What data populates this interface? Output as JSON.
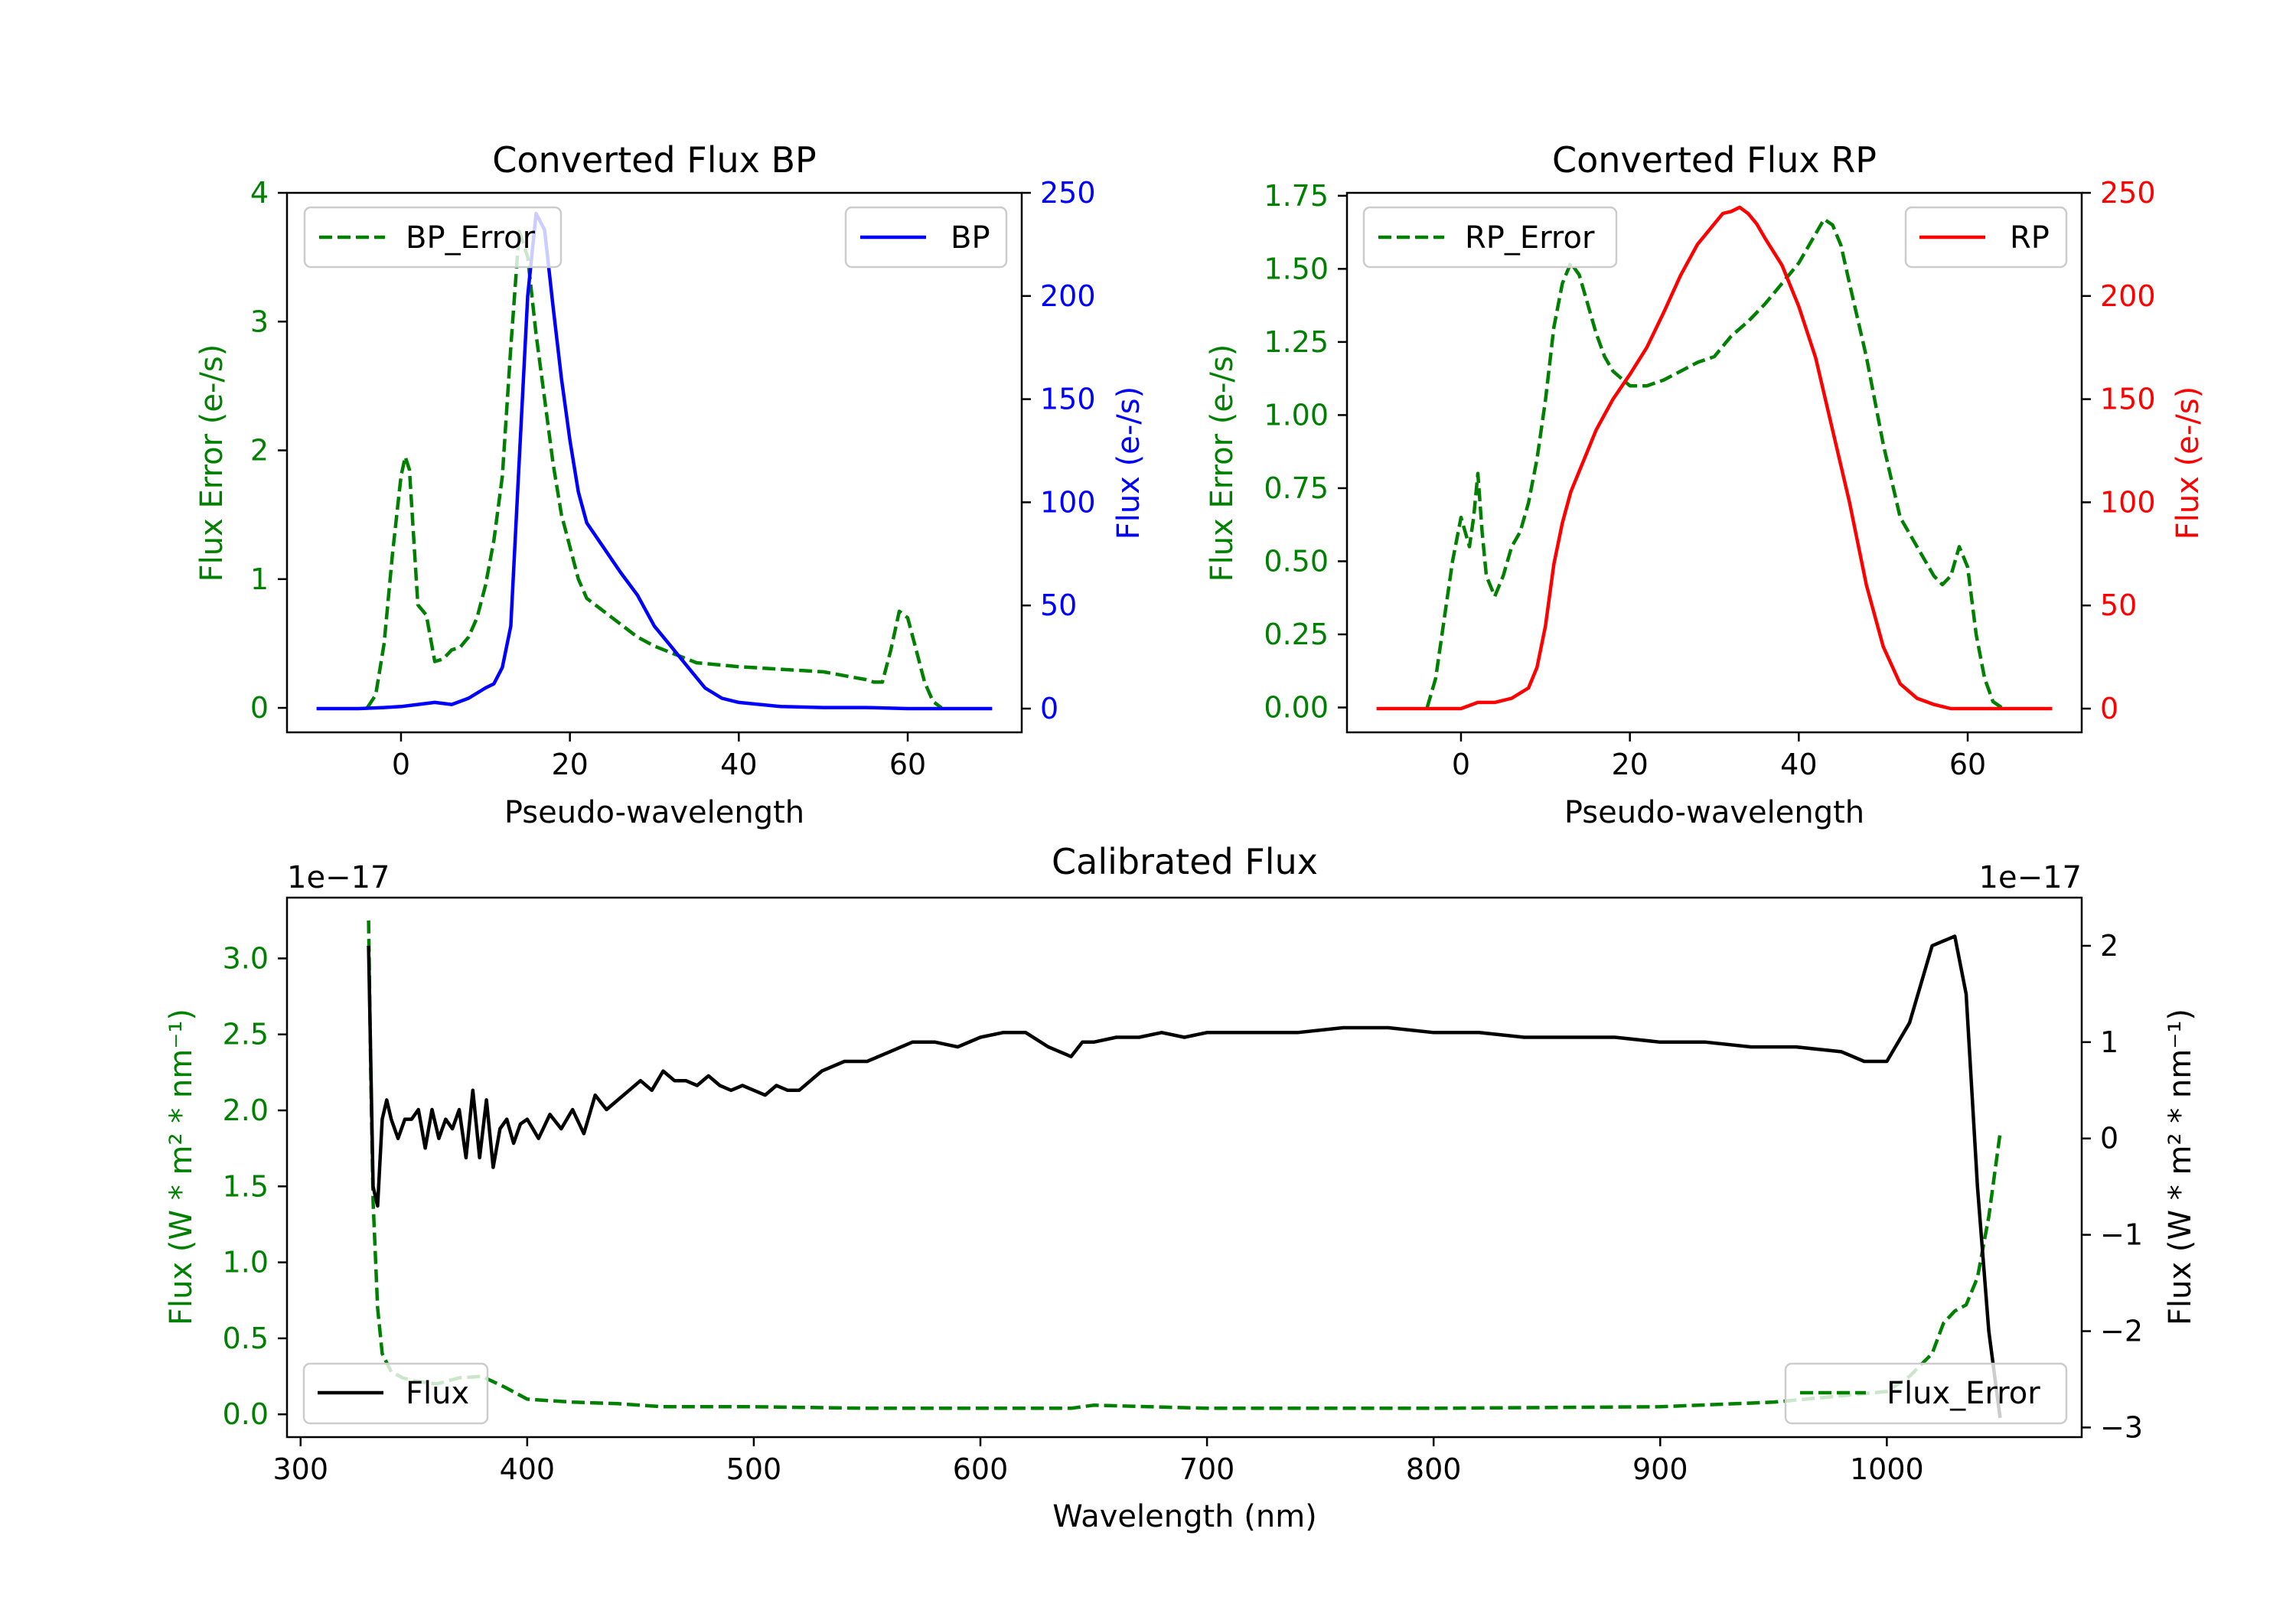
{
  "chart_data": [
    {
      "id": "bp",
      "type": "line",
      "title": "Converted Flux BP",
      "xlabel": "Pseudo-wavelength",
      "xlim": [
        -13.5,
        73.5
      ],
      "xticks": [
        0,
        20,
        40,
        60
      ],
      "colors": {
        "left": "#008000",
        "right": "#0000ff"
      },
      "left_axis": {
        "label": "Flux Error (e-/s)",
        "ylim": [
          -0.19,
          4.0
        ],
        "ticks": [
          0,
          1,
          2,
          3,
          4
        ]
      },
      "right_axis": {
        "label": "Flux (e-/s)",
        "ylim": [
          -11.5,
          250
        ],
        "ticks": [
          0,
          50,
          100,
          150,
          200,
          250
        ]
      },
      "series": [
        {
          "name": "BP_Error",
          "axis": "left",
          "color": "#008000",
          "dash": true,
          "x": [
            -4,
            -3,
            -2,
            -1,
            0,
            0.5,
            1,
            2,
            3,
            4,
            5,
            6,
            7,
            8,
            9,
            10,
            11,
            12,
            13,
            14,
            15,
            16,
            17,
            18,
            19,
            20,
            21,
            22,
            24,
            26,
            28,
            30,
            35,
            40,
            45,
            50,
            55,
            56,
            57,
            58,
            59,
            60,
            61,
            62,
            63,
            64
          ],
          "y": [
            0,
            0.1,
            0.5,
            1.2,
            1.8,
            1.95,
            1.85,
            0.8,
            0.72,
            0.36,
            0.38,
            0.45,
            0.47,
            0.55,
            0.7,
            0.95,
            1.3,
            1.8,
            2.8,
            3.7,
            3.5,
            2.9,
            2.4,
            1.9,
            1.5,
            1.25,
            1.0,
            0.85,
            0.75,
            0.65,
            0.55,
            0.48,
            0.35,
            0.32,
            0.3,
            0.28,
            0.22,
            0.2,
            0.2,
            0.45,
            0.75,
            0.7,
            0.45,
            0.2,
            0.05,
            0
          ]
        },
        {
          "name": "BP",
          "axis": "right",
          "color": "#0000ff",
          "dash": false,
          "x": [
            -10,
            -5,
            -2,
            0,
            2,
            4,
            6,
            8,
            10,
            11,
            12,
            13,
            14,
            15,
            16,
            17,
            18,
            19,
            20,
            21,
            22,
            24,
            26,
            28,
            30,
            32,
            34,
            36,
            38,
            40,
            45,
            50,
            55,
            60,
            65,
            70
          ],
          "y": [
            0,
            0,
            0.5,
            1,
            2,
            3,
            2,
            5,
            10,
            12,
            20,
            40,
            120,
            200,
            240,
            232,
            195,
            160,
            130,
            105,
            90,
            78,
            66,
            55,
            40,
            30,
            20,
            10,
            5,
            3,
            1,
            0.5,
            0.5,
            0,
            0,
            0
          ]
        }
      ],
      "legends": [
        {
          "label": "BP_Error",
          "placement": "upper-left"
        },
        {
          "label": "BP",
          "placement": "upper-right"
        }
      ]
    },
    {
      "id": "rp",
      "type": "line",
      "title": "Converted Flux RP",
      "xlabel": "Pseudo-wavelength",
      "xlim": [
        -13.5,
        73.5
      ],
      "xticks": [
        0,
        20,
        40,
        60
      ],
      "colors": {
        "left": "#008000",
        "right": "#ff0000"
      },
      "left_axis": {
        "label": "Flux Error (e-/s)",
        "ylim": [
          -0.085,
          1.76
        ],
        "ticks": [
          0.0,
          0.25,
          0.5,
          0.75,
          1.0,
          1.25,
          1.5,
          1.75
        ]
      },
      "right_axis": {
        "label": "Flux (e-/s)",
        "ylim": [
          -11.5,
          250
        ],
        "ticks": [
          0,
          50,
          100,
          150,
          200,
          250
        ]
      },
      "series": [
        {
          "name": "RP_Error",
          "axis": "left",
          "color": "#008000",
          "dash": true,
          "x": [
            -4,
            -3,
            -2,
            -1,
            0,
            0.5,
            1,
            1.5,
            2,
            2.5,
            3,
            4,
            5,
            6,
            7,
            8,
            9,
            10,
            11,
            12,
            13,
            14,
            15,
            16,
            17,
            18,
            20,
            22,
            24,
            26,
            28,
            30,
            32,
            34,
            36,
            38,
            40,
            42,
            43,
            44,
            45,
            46,
            48,
            50,
            52,
            54,
            56,
            57,
            58,
            59,
            60,
            61,
            62,
            63,
            64
          ],
          "y": [
            0,
            0.1,
            0.3,
            0.5,
            0.65,
            0.6,
            0.55,
            0.65,
            0.8,
            0.6,
            0.45,
            0.38,
            0.45,
            0.55,
            0.6,
            0.7,
            0.85,
            1.05,
            1.3,
            1.45,
            1.52,
            1.48,
            1.38,
            1.28,
            1.2,
            1.15,
            1.1,
            1.1,
            1.12,
            1.15,
            1.18,
            1.2,
            1.27,
            1.32,
            1.38,
            1.45,
            1.52,
            1.62,
            1.67,
            1.65,
            1.58,
            1.45,
            1.2,
            0.9,
            0.65,
            0.55,
            0.45,
            0.42,
            0.45,
            0.55,
            0.48,
            0.25,
            0.1,
            0.02,
            0
          ]
        },
        {
          "name": "RP",
          "axis": "right",
          "color": "#ff0000",
          "dash": false,
          "x": [
            -10,
            -5,
            -2,
            0,
            2,
            4,
            6,
            8,
            9,
            10,
            11,
            12,
            13,
            14,
            15,
            16,
            18,
            20,
            22,
            24,
            26,
            28,
            30,
            31,
            32,
            33,
            34,
            35,
            36,
            38,
            40,
            42,
            44,
            46,
            48,
            50,
            52,
            54,
            56,
            58,
            60,
            65,
            70
          ],
          "y": [
            0,
            0,
            0,
            0,
            3,
            3,
            5,
            10,
            20,
            40,
            70,
            90,
            105,
            115,
            125,
            135,
            150,
            162,
            175,
            192,
            210,
            225,
            235,
            240,
            241,
            243,
            240,
            235,
            228,
            215,
            195,
            170,
            135,
            100,
            60,
            30,
            12,
            5,
            2,
            0,
            0,
            0,
            0
          ]
        }
      ],
      "legends": [
        {
          "label": "RP_Error",
          "placement": "upper-left"
        },
        {
          "label": "RP",
          "placement": "upper-right"
        }
      ]
    },
    {
      "id": "cal",
      "type": "line",
      "title": "Calibrated Flux",
      "xlabel": "Wavelength (nm)",
      "xlim": [
        294,
        1086
      ],
      "xticks": [
        300,
        400,
        500,
        600,
        700,
        800,
        900,
        1000
      ],
      "colors": {
        "left": "#008000",
        "right": "#000000"
      },
      "left_axis": {
        "label": "Flux (W * m² * nm⁻¹)",
        "ylim": [
          -0.15,
          3.4
        ],
        "ticks": [
          0.0,
          0.5,
          1.0,
          1.5,
          2.0,
          2.5,
          3.0
        ],
        "offset": "1e−17"
      },
      "right_axis": {
        "label": "Flux (W * m² * nm⁻¹)",
        "ylim": [
          -3.1,
          2.5
        ],
        "ticks": [
          -3,
          -2,
          -1,
          0,
          1,
          2
        ],
        "offset": "1e−17"
      },
      "series": [
        {
          "name": "Flux_Error",
          "axis": "left",
          "color": "#008000",
          "dash": true,
          "x": [
            330,
            331,
            332,
            334,
            336,
            340,
            345,
            350,
            360,
            370,
            380,
            390,
            400,
            420,
            440,
            460,
            500,
            550,
            600,
            640,
            650,
            700,
            800,
            900,
            950,
            1000,
            1010,
            1020,
            1025,
            1030,
            1035,
            1040,
            1045,
            1050
          ],
          "y": [
            3.25,
            2.2,
            1.4,
            0.7,
            0.4,
            0.28,
            0.24,
            0.22,
            0.2,
            0.24,
            0.25,
            0.18,
            0.1,
            0.08,
            0.07,
            0.05,
            0.05,
            0.04,
            0.04,
            0.04,
            0.06,
            0.04,
            0.04,
            0.05,
            0.08,
            0.15,
            0.25,
            0.4,
            0.6,
            0.68,
            0.72,
            0.9,
            1.3,
            1.85
          ]
        },
        {
          "name": "Flux",
          "axis": "right",
          "color": "#000000",
          "dash": false,
          "x": [
            330,
            332,
            334,
            336,
            338,
            340,
            343,
            346,
            349,
            352,
            355,
            358,
            361,
            364,
            367,
            370,
            373,
            376,
            379,
            382,
            385,
            388,
            391,
            394,
            397,
            400,
            405,
            410,
            415,
            420,
            425,
            430,
            435,
            440,
            445,
            450,
            455,
            460,
            465,
            470,
            475,
            480,
            485,
            490,
            495,
            500,
            505,
            510,
            515,
            520,
            525,
            530,
            540,
            550,
            560,
            570,
            580,
            590,
            600,
            610,
            620,
            630,
            640,
            645,
            650,
            660,
            670,
            680,
            690,
            700,
            720,
            740,
            760,
            780,
            800,
            820,
            840,
            860,
            880,
            900,
            920,
            940,
            960,
            980,
            990,
            1000,
            1010,
            1020,
            1030,
            1035,
            1040,
            1045,
            1050
          ],
          "y": [
            2.0,
            -0.5,
            -0.7,
            0.2,
            0.4,
            0.2,
            0.0,
            0.2,
            0.2,
            0.3,
            -0.1,
            0.3,
            0.0,
            0.2,
            0.1,
            0.3,
            -0.2,
            0.5,
            -0.2,
            0.4,
            -0.3,
            0.1,
            0.2,
            -0.05,
            0.15,
            0.2,
            0.0,
            0.25,
            0.1,
            0.3,
            0.05,
            0.45,
            0.3,
            0.4,
            0.5,
            0.6,
            0.5,
            0.7,
            0.6,
            0.6,
            0.55,
            0.65,
            0.55,
            0.5,
            0.55,
            0.5,
            0.45,
            0.55,
            0.5,
            0.5,
            0.6,
            0.7,
            0.8,
            0.8,
            0.9,
            1.0,
            1.0,
            0.95,
            1.05,
            1.1,
            1.1,
            0.95,
            0.85,
            1.0,
            1.0,
            1.05,
            1.05,
            1.1,
            1.05,
            1.1,
            1.1,
            1.1,
            1.15,
            1.15,
            1.1,
            1.1,
            1.05,
            1.05,
            1.05,
            1.0,
            1.0,
            0.95,
            0.95,
            0.9,
            0.8,
            0.8,
            1.2,
            2.0,
            2.1,
            1.5,
            -0.5,
            -2.0,
            -2.9
          ]
        }
      ],
      "legends": [
        {
          "label": "Flux",
          "placement": "lower-left"
        },
        {
          "label": "Flux_Error",
          "placement": "lower-right"
        }
      ]
    }
  ]
}
